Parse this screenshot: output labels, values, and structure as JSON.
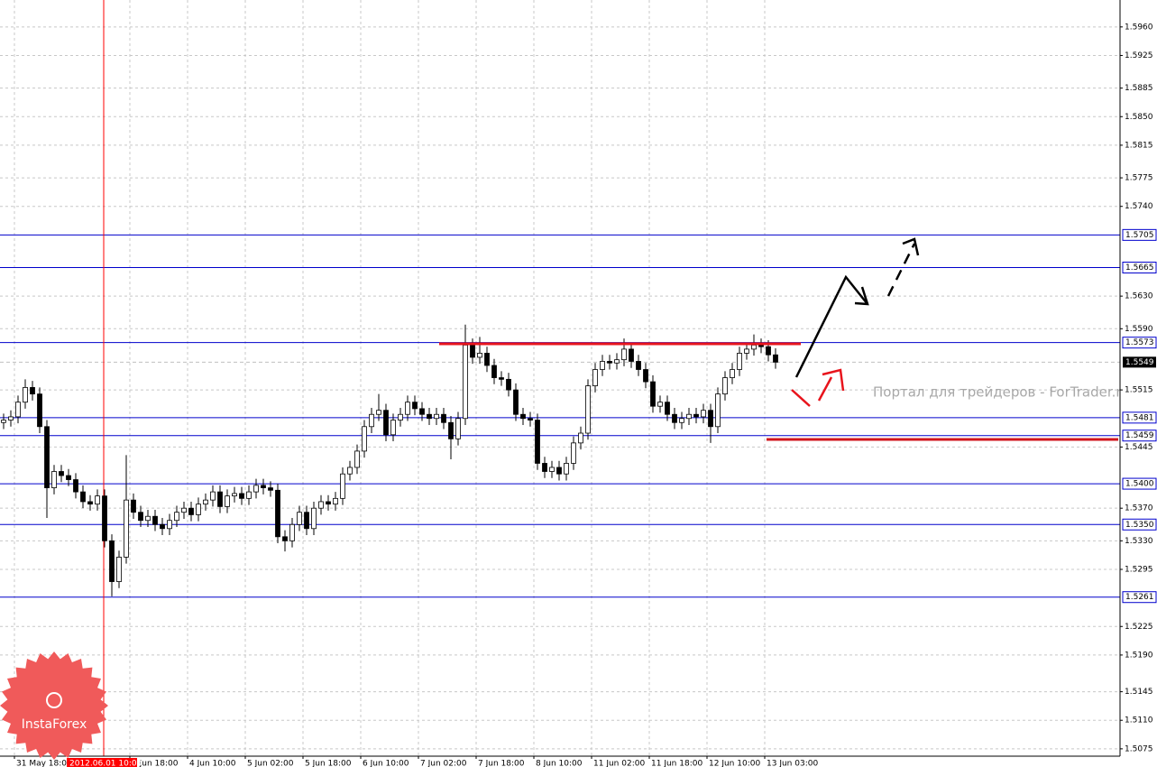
{
  "chart_data": {
    "type": "candlestick",
    "ylim": [
      1.5066,
      1.5993
    ],
    "xlim": [
      0,
      155.25
    ],
    "grid": true,
    "up_color": "#ffffff",
    "down_color": "#000000",
    "level_color": "#0000cc",
    "yticks": [
      {
        "value": 1.596,
        "label": "1.5960"
      },
      1.5925,
      1.5885,
      {
        "value": 1.585,
        "label": "1.5850"
      },
      1.5815,
      1.5775,
      {
        "value": 1.574,
        "label": "1.5740"
      },
      {
        "value": 1.563,
        "label": "1.5630"
      },
      {
        "value": 1.559,
        "label": "1.5590"
      },
      1.5515,
      1.5445,
      {
        "value": 1.537,
        "label": "1.5370"
      },
      {
        "value": 1.533,
        "label": "1.5330"
      },
      1.5295,
      1.5225,
      {
        "value": 1.519,
        "label": "1.5190"
      },
      1.5145,
      {
        "value": 1.511,
        "label": "1.5110"
      },
      1.5075
    ],
    "xticks": [
      {
        "value": 2,
        "label": "31 May 18:00"
      },
      {
        "value": 18,
        "label": "1 Jun 18:00"
      },
      {
        "value": 26,
        "label": "4 Jun 10:00"
      },
      {
        "value": 34,
        "label": "5 Jun 02:00"
      },
      {
        "value": 42,
        "label": "5 Jun 18:00"
      },
      {
        "value": 50,
        "label": "6 Jun 10:00"
      },
      {
        "value": 58,
        "label": "7 Jun 02:00"
      },
      {
        "value": 66,
        "label": "7 Jun 18:00"
      },
      {
        "value": 74,
        "label": "8 Jun 10:00"
      },
      {
        "value": 82,
        "label": "11 Jun 02:00"
      },
      {
        "value": 90,
        "label": "11 Jun 18:00"
      },
      {
        "value": 98,
        "label": "12 Jun 10:00"
      },
      {
        "value": 106,
        "label": "13 Jun 03:00"
      }
    ],
    "levels": [
      1.5705,
      1.5665,
      1.5573,
      1.5481,
      1.5459,
      {
        "value": 1.54,
        "label": "1.5400"
      },
      {
        "value": 1.535,
        "label": "1.5350"
      },
      1.5261
    ],
    "last_price": 1.5549,
    "cursor_label": "2012.06.01 10:00",
    "watermark": "Портал для трейдеров - ForTrader.ru",
    "logo": "InstaForex",
    "open": [
      1.5475,
      1.5478,
      1.5482,
      1.55,
      1.5518,
      1.551,
      1.547,
      1.5395,
      1.5415,
      1.541,
      1.5405,
      1.539,
      1.5378,
      1.5375,
      1.5385,
      1.533,
      1.528,
      1.531,
      1.538,
      1.5365,
      1.5355,
      1.536,
      1.535,
      1.5345,
      1.5355,
      1.5365,
      1.537,
      1.5362,
      1.5375,
      1.538,
      1.539,
      1.5372,
      1.5385,
      1.5388,
      1.5382,
      1.539,
      1.5398,
      1.5395,
      1.5392,
      1.5335,
      1.533,
      1.535,
      1.5365,
      1.5345,
      1.537,
      1.5378,
      1.5375,
      1.5382,
      1.5412,
      1.542,
      1.544,
      1.547,
      1.5485,
      1.549,
      1.546,
      1.5478,
      1.5485,
      1.55,
      1.5492,
      1.5485,
      1.548,
      1.5485,
      1.5475,
      1.5455,
      1.548,
      1.557,
      1.5555,
      1.556,
      1.5545,
      1.553,
      1.5528,
      1.5515,
      1.5485,
      1.548,
      1.5478,
      1.5425,
      1.5415,
      1.542,
      1.5412,
      1.5425,
      1.545,
      1.5462,
      1.552,
      1.554,
      1.555,
      1.5548,
      1.5552,
      1.5565,
      1.555,
      1.554,
      1.5525,
      1.5495,
      1.55,
      1.5485,
      1.5475,
      1.548,
      1.5485,
      1.5482,
      1.549,
      1.547,
      1.551,
      1.553,
      1.554,
      1.556,
      1.5565,
      1.557,
      1.5568,
      1.5558
    ],
    "high": [
      1.5486,
      1.549,
      1.5508,
      1.5528,
      1.5526,
      1.5518,
      1.5478,
      1.5423,
      1.5423,
      1.5418,
      1.5413,
      1.5398,
      1.5386,
      1.5393,
      1.5393,
      1.5338,
      1.5318,
      1.5435,
      1.5388,
      1.5373,
      1.5368,
      1.5368,
      1.5358,
      1.5363,
      1.5373,
      1.5378,
      1.5378,
      1.5383,
      1.5388,
      1.5398,
      1.5398,
      1.5393,
      1.5396,
      1.5396,
      1.5398,
      1.5406,
      1.5406,
      1.5403,
      1.54,
      1.5343,
      1.5358,
      1.5373,
      1.5373,
      1.5378,
      1.5386,
      1.5386,
      1.539,
      1.542,
      1.5428,
      1.5448,
      1.5478,
      1.5493,
      1.551,
      1.5498,
      1.5486,
      1.5493,
      1.5508,
      1.5508,
      1.55,
      1.5493,
      1.5493,
      1.5493,
      1.5483,
      1.5488,
      1.5595,
      1.5578,
      1.558,
      1.5568,
      1.5553,
      1.5538,
      1.5536,
      1.5523,
      1.5493,
      1.5488,
      1.5486,
      1.5433,
      1.5428,
      1.5428,
      1.5433,
      1.5458,
      1.547,
      1.5528,
      1.5548,
      1.5558,
      1.5558,
      1.556,
      1.5578,
      1.5573,
      1.5558,
      1.5548,
      1.5533,
      1.5508,
      1.5508,
      1.5493,
      1.5488,
      1.5493,
      1.5493,
      1.5498,
      1.5498,
      1.5518,
      1.5538,
      1.5548,
      1.5568,
      1.5573,
      1.5583,
      1.5578,
      1.5576,
      1.5566
    ],
    "low": [
      1.5467,
      1.547,
      1.5474,
      1.5492,
      1.5502,
      1.5462,
      1.5358,
      1.5387,
      1.5402,
      1.5397,
      1.5382,
      1.537,
      1.5367,
      1.5367,
      1.5322,
      1.5262,
      1.5272,
      1.5302,
      1.5357,
      1.5347,
      1.5347,
      1.5342,
      1.5337,
      1.5337,
      1.5347,
      1.5357,
      1.5354,
      1.5354,
      1.5367,
      1.5372,
      1.5364,
      1.5364,
      1.5377,
      1.5374,
      1.5374,
      1.5382,
      1.5387,
      1.5384,
      1.5327,
      1.5317,
      1.5322,
      1.5342,
      1.5337,
      1.5337,
      1.5362,
      1.5367,
      1.5367,
      1.5374,
      1.5404,
      1.5412,
      1.5432,
      1.5462,
      1.5477,
      1.5452,
      1.5452,
      1.547,
      1.5477,
      1.5484,
      1.5477,
      1.5472,
      1.5472,
      1.5467,
      1.543,
      1.5447,
      1.5472,
      1.5547,
      1.5547,
      1.5537,
      1.5522,
      1.552,
      1.5507,
      1.5477,
      1.5472,
      1.547,
      1.5417,
      1.5407,
      1.5407,
      1.5404,
      1.5404,
      1.5417,
      1.5442,
      1.5454,
      1.5512,
      1.5532,
      1.554,
      1.554,
      1.5544,
      1.5542,
      1.5532,
      1.5517,
      1.5487,
      1.5487,
      1.5477,
      1.5467,
      1.5467,
      1.5472,
      1.5474,
      1.5474,
      1.545,
      1.5462,
      1.5502,
      1.5522,
      1.5532,
      1.5552,
      1.5557,
      1.556,
      1.555,
      1.5541
    ],
    "close": [
      1.5478,
      1.5482,
      1.55,
      1.5518,
      1.551,
      1.547,
      1.5395,
      1.5415,
      1.541,
      1.5405,
      1.539,
      1.5378,
      1.5375,
      1.5385,
      1.533,
      1.528,
      1.531,
      1.538,
      1.5365,
      1.5355,
      1.536,
      1.535,
      1.5345,
      1.5355,
      1.5365,
      1.537,
      1.5362,
      1.5375,
      1.538,
      1.539,
      1.5372,
      1.5385,
      1.5388,
      1.5382,
      1.539,
      1.5398,
      1.5395,
      1.5392,
      1.5335,
      1.533,
      1.535,
      1.5365,
      1.5345,
      1.537,
      1.5378,
      1.5375,
      1.5382,
      1.5412,
      1.542,
      1.544,
      1.547,
      1.5485,
      1.549,
      1.546,
      1.5478,
      1.5485,
      1.55,
      1.5492,
      1.5485,
      1.548,
      1.5485,
      1.5475,
      1.5455,
      1.548,
      1.557,
      1.5555,
      1.556,
      1.5545,
      1.553,
      1.5528,
      1.5515,
      1.5485,
      1.548,
      1.5478,
      1.5425,
      1.5415,
      1.542,
      1.5412,
      1.5425,
      1.545,
      1.5462,
      1.552,
      1.554,
      1.555,
      1.5548,
      1.5552,
      1.5565,
      1.555,
      1.554,
      1.5525,
      1.5495,
      1.55,
      1.5485,
      1.5475,
      1.548,
      1.5485,
      1.5482,
      1.549,
      1.547,
      1.551,
      1.553,
      1.554,
      1.556,
      1.5565,
      1.557,
      1.5568,
      1.5558,
      1.5549
    ]
  }
}
